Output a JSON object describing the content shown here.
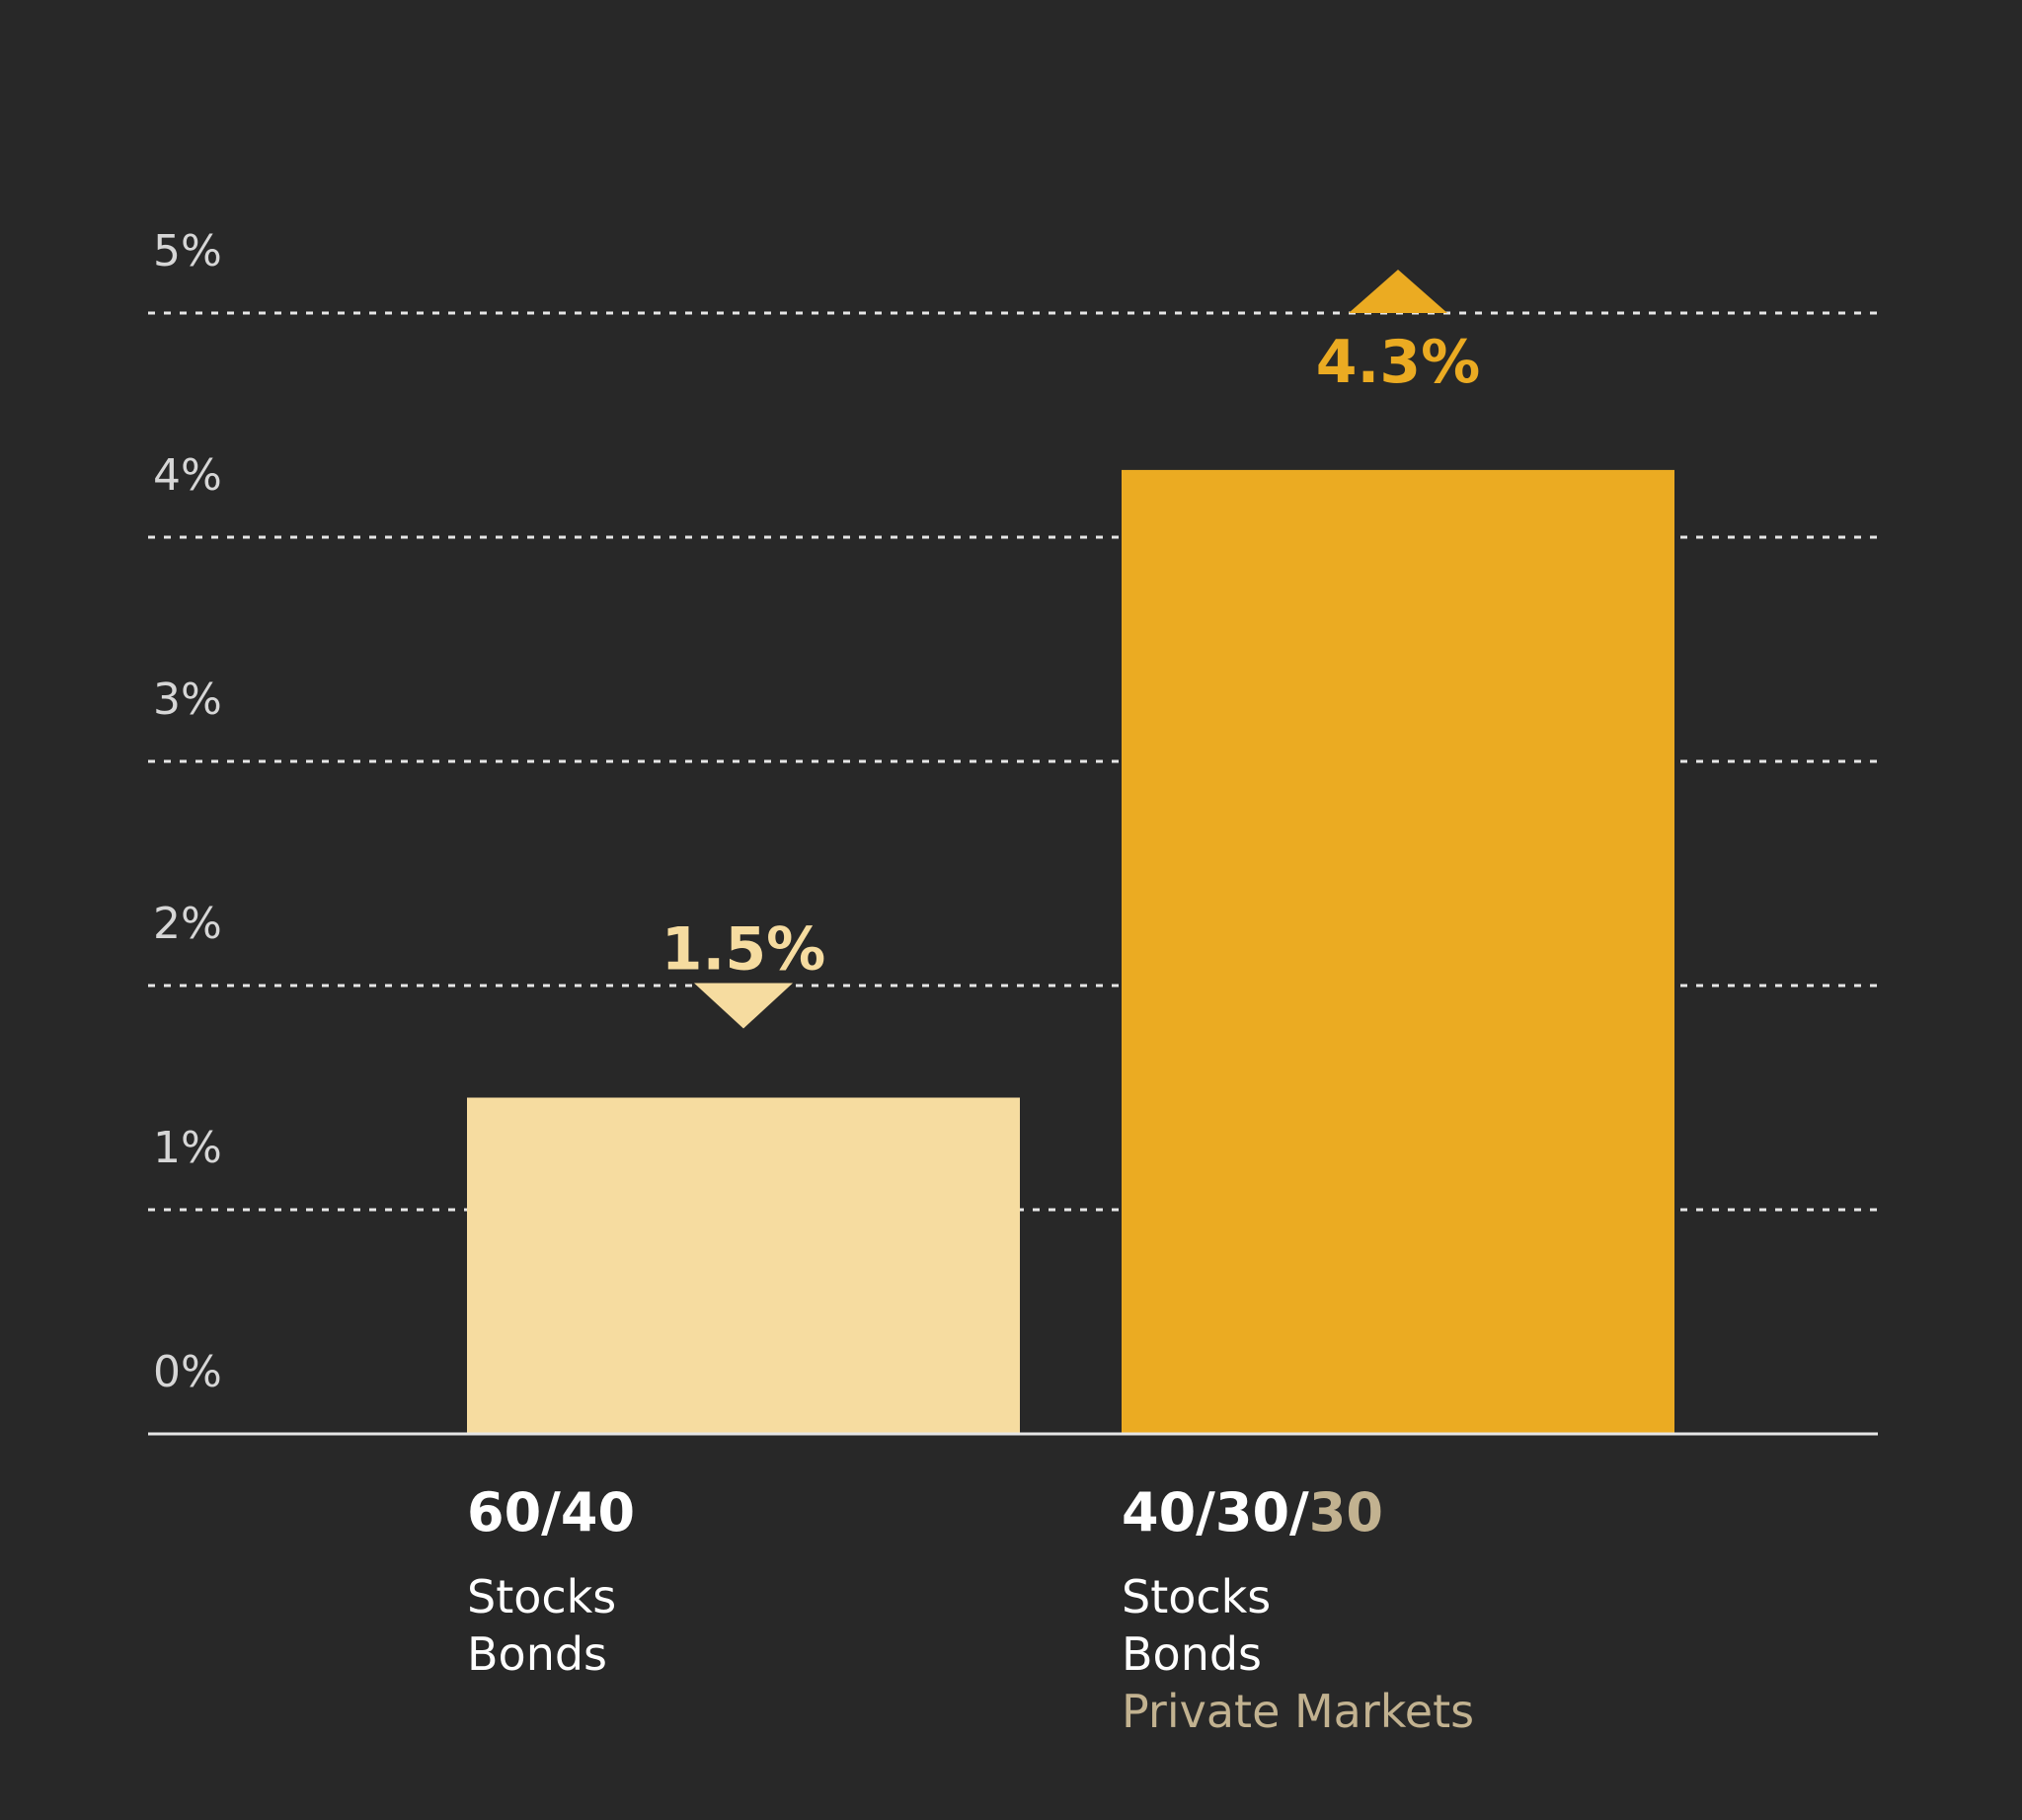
{
  "colors": {
    "background": "#282828",
    "grid": "#e6e6e6",
    "axis": "#e6e6e6",
    "tick_text": "#d6d6d6",
    "bar_light": "#f6dca0",
    "bar_gold": "#ebab22",
    "text_white": "#ffffff",
    "text_muted": "#c2b290"
  },
  "chart_data": {
    "type": "bar",
    "title": "",
    "xlabel": "",
    "ylabel": "",
    "ylim": [
      0,
      5
    ],
    "yticks": [
      "0%",
      "1%",
      "2%",
      "3%",
      "4%",
      "5%"
    ],
    "grid": true,
    "categories": [
      "60/40",
      "40/30/30"
    ],
    "values": [
      1.5,
      4.3
    ],
    "value_labels": [
      "1.5%",
      "4.3%"
    ],
    "bars": [
      {
        "title_parts": [
          "60/40"
        ],
        "lines": [
          "Stocks",
          "Bonds"
        ],
        "color": "#f6dca0",
        "marker": "down-arrow",
        "value_label": "1.5%"
      },
      {
        "title_parts": [
          "40/30/",
          "30"
        ],
        "lines": [
          "Stocks",
          "Bonds",
          "Private Markets"
        ],
        "color": "#ebab22",
        "marker": "up-arrow",
        "value_label": "4.3%"
      }
    ]
  }
}
